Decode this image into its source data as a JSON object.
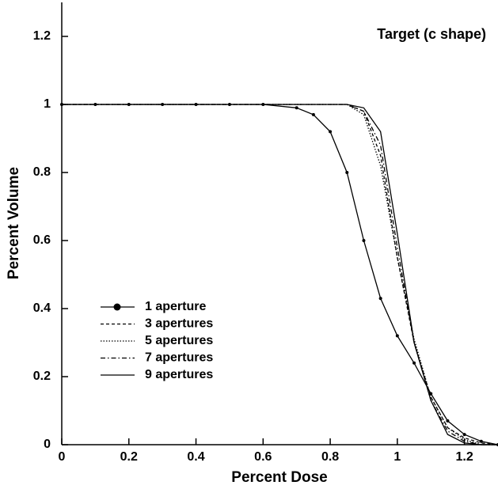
{
  "chart_data": {
    "type": "line",
    "title": "Target  (c shape)",
    "xlabel": "Percent Dose",
    "ylabel": "Percent Volume",
    "x": [
      0,
      0.1,
      0.2,
      0.3,
      0.4,
      0.5,
      0.6,
      0.7,
      0.75,
      0.8,
      0.85,
      0.9,
      0.95,
      1.0,
      1.05,
      1.1,
      1.15,
      1.2,
      1.25,
      1.3
    ],
    "series": [
      {
        "name": "1 aperture",
        "color": "#000000",
        "style": "solid-dot",
        "values": [
          1,
          1,
          1,
          1,
          1,
          1,
          1,
          0.99,
          0.97,
          0.92,
          0.8,
          0.6,
          0.43,
          0.32,
          0.24,
          0.15,
          0.07,
          0.03,
          0.01,
          0
        ]
      },
      {
        "name": "3 apertures",
        "color": "#000000",
        "style": "dashed",
        "values": [
          1,
          1,
          1,
          1,
          1,
          1,
          1,
          1,
          1,
          1,
          1,
          0.98,
          0.85,
          0.55,
          0.3,
          0.14,
          0.05,
          0.02,
          0.005,
          0
        ]
      },
      {
        "name": "5 apertures",
        "color": "#000000",
        "style": "dotted",
        "values": [
          1,
          1,
          1,
          1,
          1,
          1,
          1,
          1,
          1,
          1,
          1,
          0.97,
          0.82,
          0.55,
          0.31,
          0.14,
          0.05,
          0.015,
          0,
          0
        ]
      },
      {
        "name": "7 apertures",
        "color": "#000000",
        "style": "dashdot",
        "values": [
          1,
          1,
          1,
          1,
          1,
          1,
          1,
          1,
          1,
          1,
          1,
          0.98,
          0.88,
          0.58,
          0.3,
          0.13,
          0.04,
          0.01,
          0,
          0
        ]
      },
      {
        "name": "9 apertures",
        "color": "#000000",
        "style": "solid",
        "values": [
          1,
          1,
          1,
          1,
          1,
          1,
          1,
          1,
          1,
          1,
          1,
          0.99,
          0.92,
          0.62,
          0.3,
          0.13,
          0.03,
          0.005,
          0,
          0
        ]
      }
    ],
    "xlim": [
      0,
      1.3
    ],
    "ylim": [
      0,
      1.3
    ],
    "xticks": [
      0,
      0.2,
      0.4,
      0.6,
      0.8,
      1,
      1.2
    ],
    "yticks": [
      0,
      0.2,
      0.4,
      0.6,
      0.8,
      1,
      1.2
    ],
    "legend": "lower left"
  }
}
